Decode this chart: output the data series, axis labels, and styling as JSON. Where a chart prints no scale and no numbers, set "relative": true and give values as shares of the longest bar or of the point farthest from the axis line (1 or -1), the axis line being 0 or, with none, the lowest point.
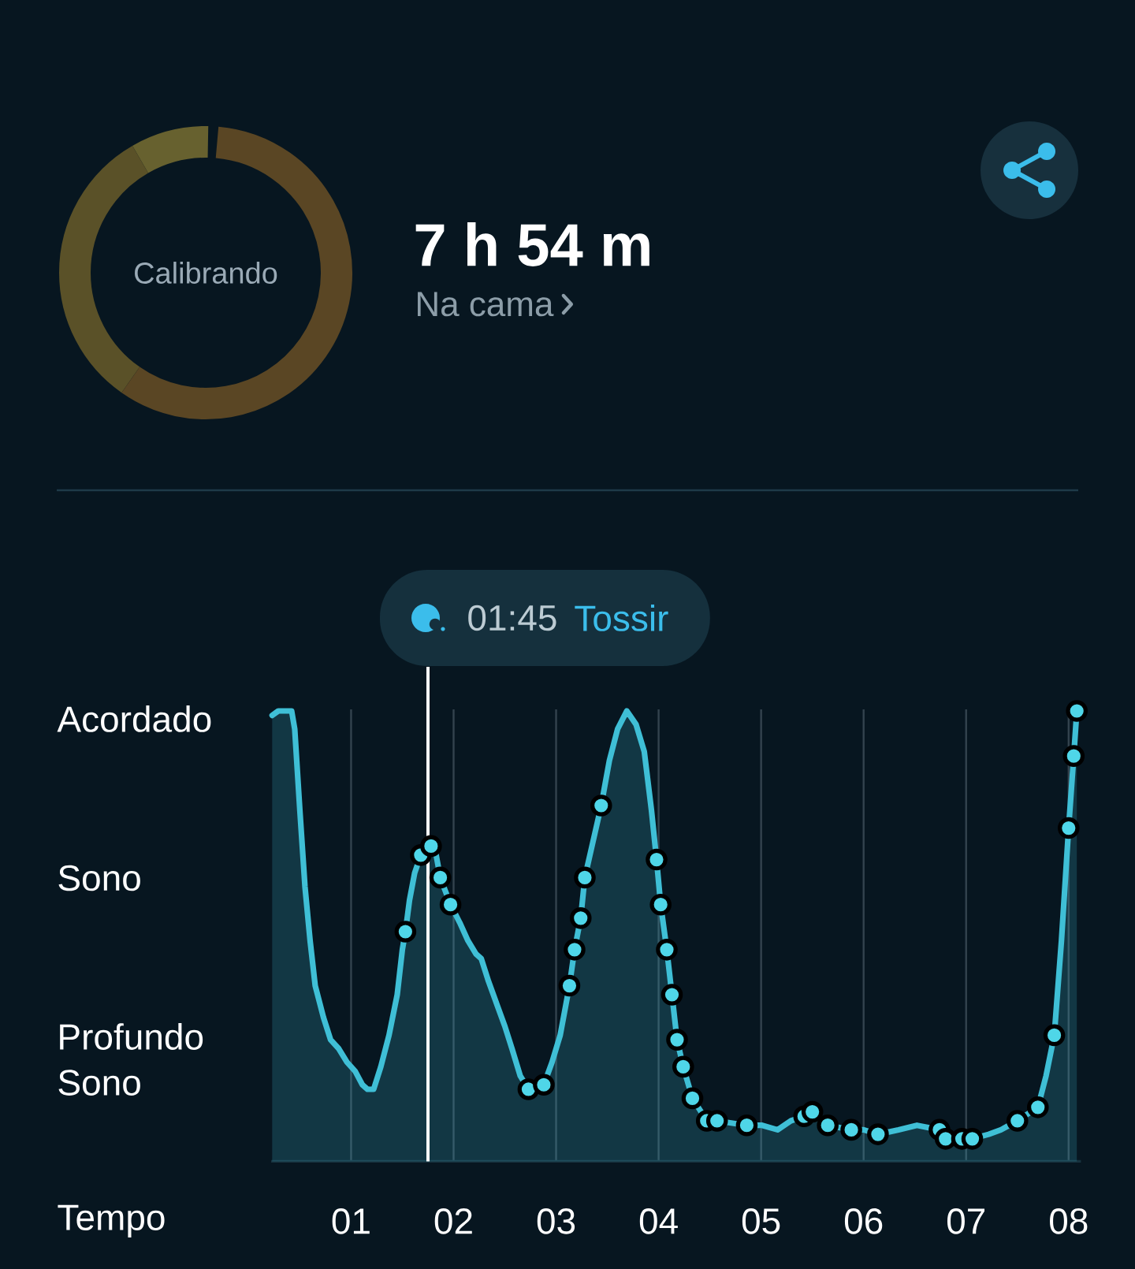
{
  "chart_data": [
    {
      "type": "other",
      "title": "7 h 54 m",
      "subtitle": "Na cama",
      "annotations": [
        "Calibrando"
      ]
    },
    {
      "type": "area",
      "xlabel": "Tempo",
      "relative": true,
      "x": [
        0.23,
        0.29,
        0.34,
        0.38,
        0.42,
        0.45,
        0.5,
        0.55,
        0.6,
        0.65,
        0.73,
        0.8,
        0.88,
        0.96,
        1.04,
        1.11,
        1.16,
        1.22,
        1.29,
        1.37,
        1.45,
        1.5,
        1.53,
        1.57,
        1.62,
        1.68,
        1.73,
        1.78,
        1.83,
        1.87,
        1.97,
        2.06,
        2.14,
        2.22,
        2.27,
        2.34,
        2.42,
        2.5,
        2.57,
        2.65,
        2.73,
        2.88,
        2.96,
        3.04,
        3.13,
        3.18,
        3.24,
        3.28,
        3.37,
        3.44,
        3.52,
        3.6,
        3.69,
        3.78,
        3.86,
        3.93,
        3.98,
        4.02,
        4.08,
        4.13,
        4.18,
        4.24,
        4.33,
        4.47,
        4.57,
        4.86,
        5.01,
        5.16,
        5.29,
        5.42,
        5.5,
        5.65,
        5.88,
        6.0,
        6.14,
        6.34,
        6.52,
        6.74,
        6.8,
        6.96,
        7.06,
        7.22,
        7.34,
        7.5,
        7.7,
        7.78,
        7.86,
        7.93,
        8.0,
        8.05,
        8.08
      ],
      "series": [
        {
          "type": "area",
          "color": "#3fbfd6",
          "values": [
            0.99,
            1,
            1,
            1,
            1,
            0.96,
            0.78,
            0.61,
            0.49,
            0.39,
            0.32,
            0.27,
            0.25,
            0.22,
            0.2,
            0.17,
            0.16,
            0.16,
            0.21,
            0.28,
            0.37,
            0.47,
            0.51,
            0.58,
            0.64,
            0.68,
            0.69,
            0.7,
            0.68,
            0.63,
            0.57,
            0.53,
            0.49,
            0.46,
            0.45,
            0.4,
            0.35,
            0.3,
            0.25,
            0.19,
            0.16,
            0.17,
            0.22,
            0.28,
            0.39,
            0.47,
            0.54,
            0.63,
            0.72,
            0.79,
            0.89,
            0.96,
            1,
            0.97,
            0.91,
            0.78,
            0.67,
            0.57,
            0.47,
            0.37,
            0.27,
            0.21,
            0.14,
            0.09,
            0.09,
            0.08,
            0.08,
            0.07,
            0.09,
            0.1,
            0.11,
            0.08,
            0.07,
            0.07,
            0.06,
            0.07,
            0.08,
            0.07,
            0.05,
            0.05,
            0.05,
            0.06,
            0.07,
            0.09,
            0.12,
            0.19,
            0.28,
            0.49,
            0.74,
            0.9,
            1
          ]
        },
        {
          "type": "scatter",
          "color": "#4fd6e8",
          "marker": "circle",
          "x": [
            1.53,
            1.68,
            1.78,
            1.87,
            1.97,
            2.73,
            2.88,
            3.13,
            3.18,
            3.24,
            3.28,
            3.44,
            3.98,
            4.02,
            4.08,
            4.13,
            4.18,
            4.24,
            4.33,
            4.47,
            4.57,
            4.86,
            5.42,
            5.5,
            5.65,
            5.88,
            6.14,
            6.74,
            6.8,
            6.96,
            7.06,
            7.5,
            7.7,
            7.86,
            8.0,
            8.05,
            8.08
          ],
          "values": [
            0.51,
            0.68,
            0.7,
            0.63,
            0.57,
            0.16,
            0.17,
            0.39,
            0.47,
            0.54,
            0.63,
            0.79,
            0.67,
            0.57,
            0.47,
            0.37,
            0.27,
            0.21,
            0.14,
            0.09,
            0.09,
            0.08,
            0.1,
            0.11,
            0.08,
            0.07,
            0.06,
            0.07,
            0.05,
            0.05,
            0.05,
            0.09,
            0.12,
            0.28,
            0.74,
            0.9,
            1
          ]
        }
      ],
      "xlim": [
        0.22,
        8.12
      ],
      "xticks": [
        {
          "value": 1,
          "label": "01"
        },
        {
          "value": 2,
          "label": "02"
        },
        {
          "value": 3,
          "label": "03"
        },
        {
          "value": 4,
          "label": "04"
        },
        {
          "value": 5,
          "label": "05"
        },
        {
          "value": 6,
          "label": "06"
        },
        {
          "value": 7,
          "label": "07"
        },
        {
          "value": 8,
          "label": "08"
        }
      ],
      "grid": "x",
      "annotations": [
        "01:45",
        "Tossir",
        "Acordado",
        "Sono",
        "Profundo Sono"
      ],
      "ref_lines": [
        {
          "axis": "x",
          "value": 1.75,
          "color": "#ffffff"
        }
      ]
    }
  ]
}
